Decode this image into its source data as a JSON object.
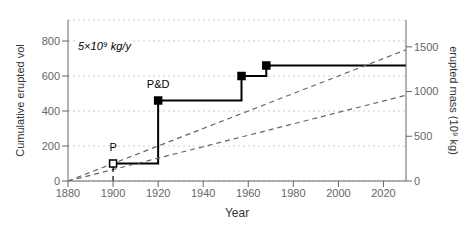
{
  "chart_data": {
    "type": "line",
    "title": "",
    "xlabel": "Year",
    "ylabel": "Cumulative erupted vol",
    "y2label": "erupted mass (10⁹ kg)",
    "xlim": [
      1880,
      2030
    ],
    "xticks": [
      1880,
      1900,
      1920,
      1940,
      1960,
      1980,
      2000,
      2020
    ],
    "ylim": [
      0,
      920
    ],
    "yticks": [
      0,
      200,
      400,
      600,
      800
    ],
    "y2lim": [
      0,
      1800
    ],
    "y2ticks": [
      0,
      500,
      1000,
      1500
    ],
    "grid": "y",
    "series": [
      {
        "type": "line",
        "x": [
          1900,
          1920,
          1920,
          1957,
          1957,
          1968,
          1968,
          2030
        ],
        "values": [
          100,
          100,
          460,
          460,
          600,
          600,
          660,
          660
        ],
        "color": "#000000",
        "line_style": "solid"
      },
      {
        "type": "line",
        "x": [
          1880,
          2030
        ],
        "values": [
          0,
          750
        ],
        "color": "#666666",
        "line_style": "dashed",
        "label": "5×10⁹ kg/y"
      },
      {
        "type": "line",
        "x": [
          1880,
          2030
        ],
        "values": [
          0,
          490
        ],
        "color": "#666666",
        "line_style": "dashed"
      },
      {
        "type": "line",
        "x": [
          1900,
          1900
        ],
        "values": [
          0,
          100
        ],
        "color": "#000000",
        "line_style": "dashed"
      },
      {
        "type": "scatter",
        "x": [
          1900
        ],
        "values": [
          100
        ],
        "color": "#000000",
        "marker": "open_square"
      },
      {
        "type": "scatter",
        "x": [
          1920,
          1957,
          1968
        ],
        "values": [
          460,
          600,
          660
        ],
        "color": "#000000",
        "marker": "square"
      }
    ],
    "annotations": [
      {
        "text": "P",
        "x": 1900,
        "y": 100
      },
      {
        "text": "P&D",
        "x": 1920,
        "y": 460
      }
    ]
  }
}
